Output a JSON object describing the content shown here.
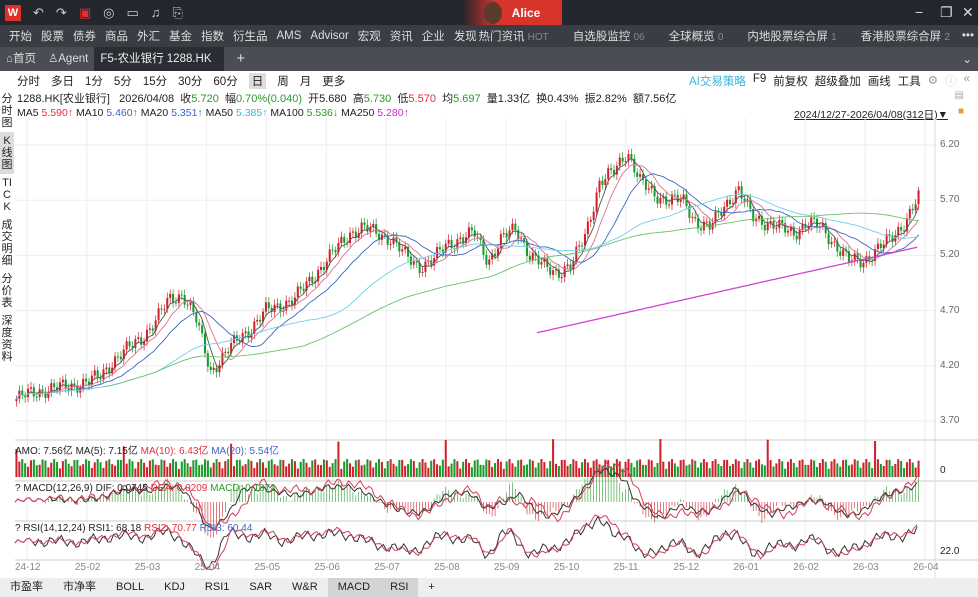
{
  "titlebar": {
    "logo": "W",
    "icons": [
      "undo-icon",
      "redo-icon",
      "a-icon",
      "chat-icon",
      "monitor-icon",
      "bell-icon",
      "f1-icon"
    ],
    "user": "Alice"
  },
  "menu": {
    "items": [
      "开始",
      "股票",
      "债券",
      "商品",
      "外汇",
      "基金",
      "指数",
      "衍生品",
      "AMS",
      "Advisor",
      "宏观",
      "资讯",
      "企业",
      "发现"
    ],
    "right": [
      {
        "label": "热门资讯",
        "badge": "HOT"
      },
      {
        "label": "自选股监控",
        "badge": "06"
      },
      {
        "label": "全球概览",
        "badge": "0"
      },
      {
        "label": "内地股票综合屏",
        "badge": "1"
      },
      {
        "label": "香港股票综合屏",
        "badge": "2"
      }
    ],
    "more": "•••"
  },
  "tabs": {
    "home": "首页",
    "agent": "Agent",
    "active": "F5-农业银行 1288.HK",
    "add": "+"
  },
  "periods": [
    "分时",
    "多日",
    "1分",
    "5分",
    "15分",
    "30分",
    "60分",
    "日",
    "周",
    "月",
    "更多"
  ],
  "tools": {
    "ai": "AI交易策略",
    "f9": "F9",
    "adjust": "前复权",
    "overlay": "超级叠加",
    "draw": "画线",
    "tools": "工具"
  },
  "side_tabs": [
    "分时图",
    "K线图",
    "TICK",
    "成交明细",
    "分价表",
    "深度资料"
  ],
  "quote": {
    "code": "1288.HK[农业银行]",
    "date": "2026/04/08",
    "close_label": "收",
    "close": "5.720",
    "chg_label": "幅",
    "chg": "0.70%(0.040)",
    "open_label": "开",
    "open": "5.680",
    "high_label": "高",
    "high": "5.730",
    "low_label": "低",
    "low": "5.570",
    "avg_label": "均",
    "avg": "5.697",
    "vol_label": "量",
    "vol": "1.33亿",
    "turn_label": "换",
    "turn": "0.43%",
    "amp_label": "振",
    "amp": "2.82%",
    "amt_label": "额",
    "amt": "7.56亿"
  },
  "ma": [
    {
      "label": "MA5",
      "value": "5.590↑",
      "color": "#e0303a"
    },
    {
      "label": "MA10",
      "value": "5.460↑",
      "color": "#3a66c4"
    },
    {
      "label": "MA20",
      "value": "5.351↑",
      "color": "#3a66c4"
    },
    {
      "label": "MA50",
      "value": "5.385↑",
      "color": "#3ab6d6"
    },
    {
      "label": "MA100",
      "value": "5.536↓",
      "color": "#2a9a2a"
    },
    {
      "label": "MA250",
      "value": "5.280↑",
      "color": "#c030c0"
    }
  ],
  "range": "2024/12/27-2026/04/08(312日)▼",
  "amo": {
    "label": "AMO: 7.56亿",
    "ma5": "MA(5): 7.15亿",
    "ma10": "MA(10): 6.43亿",
    "ma20": "MA(20): 5.54亿",
    "axis": "0"
  },
  "macd": {
    "label": "? MACD(12,26,9)",
    "dif": "DIF: 0.0745",
    "dea": "DEA: 0.0209",
    "macd": "MACD: 0.1071"
  },
  "rsi": {
    "label": "? RSI(14,12,24)",
    "rsi1": "RSI1: 68.18",
    "rsi2": "RSI2: 70.77",
    "rsi3": "RSI3: 60.44",
    "axis": "22.0"
  },
  "bottom_tabs": [
    "市盈率",
    "市净率",
    "BOLL",
    "KDJ",
    "RSI1",
    "SAR",
    "W&R",
    "MACD",
    "RSI",
    "+"
  ],
  "chart_data": {
    "type": "candlestick",
    "y_ticks": [
      "6.20",
      "5.70",
      "5.20",
      "4.70",
      "4.20",
      "3.70"
    ],
    "ylim": [
      3.7,
      6.2
    ],
    "x_ticks": [
      "24-12",
      "25-02",
      "25-03",
      "25-04",
      "25-05",
      "25-06",
      "25-07",
      "25-08",
      "25-09",
      "25-10",
      "25-11",
      "25-12",
      "26-01",
      "26-02",
      "26-03",
      "26-04"
    ],
    "closes": [
      3.9,
      3.95,
      3.98,
      4.0,
      4.02,
      4.05,
      4.1,
      4.25,
      4.35,
      4.45,
      4.6,
      4.8,
      4.85,
      4.6,
      4.15,
      4.3,
      4.45,
      4.55,
      4.7,
      4.75,
      4.8,
      4.95,
      5.1,
      5.25,
      5.4,
      5.45,
      5.4,
      5.35,
      5.2,
      5.1,
      5.15,
      5.3,
      5.35,
      5.4,
      5.15,
      5.35,
      5.45,
      5.2,
      5.1,
      5.05,
      5.1,
      5.4,
      5.85,
      5.95,
      6.15,
      5.85,
      5.75,
      5.7,
      5.7,
      5.5,
      5.45,
      5.65,
      5.8,
      5.55,
      5.5,
      5.45,
      5.4,
      5.5,
      5.45,
      5.3,
      5.15,
      5.15,
      5.25,
      5.35,
      5.5,
      5.72
    ]
  }
}
